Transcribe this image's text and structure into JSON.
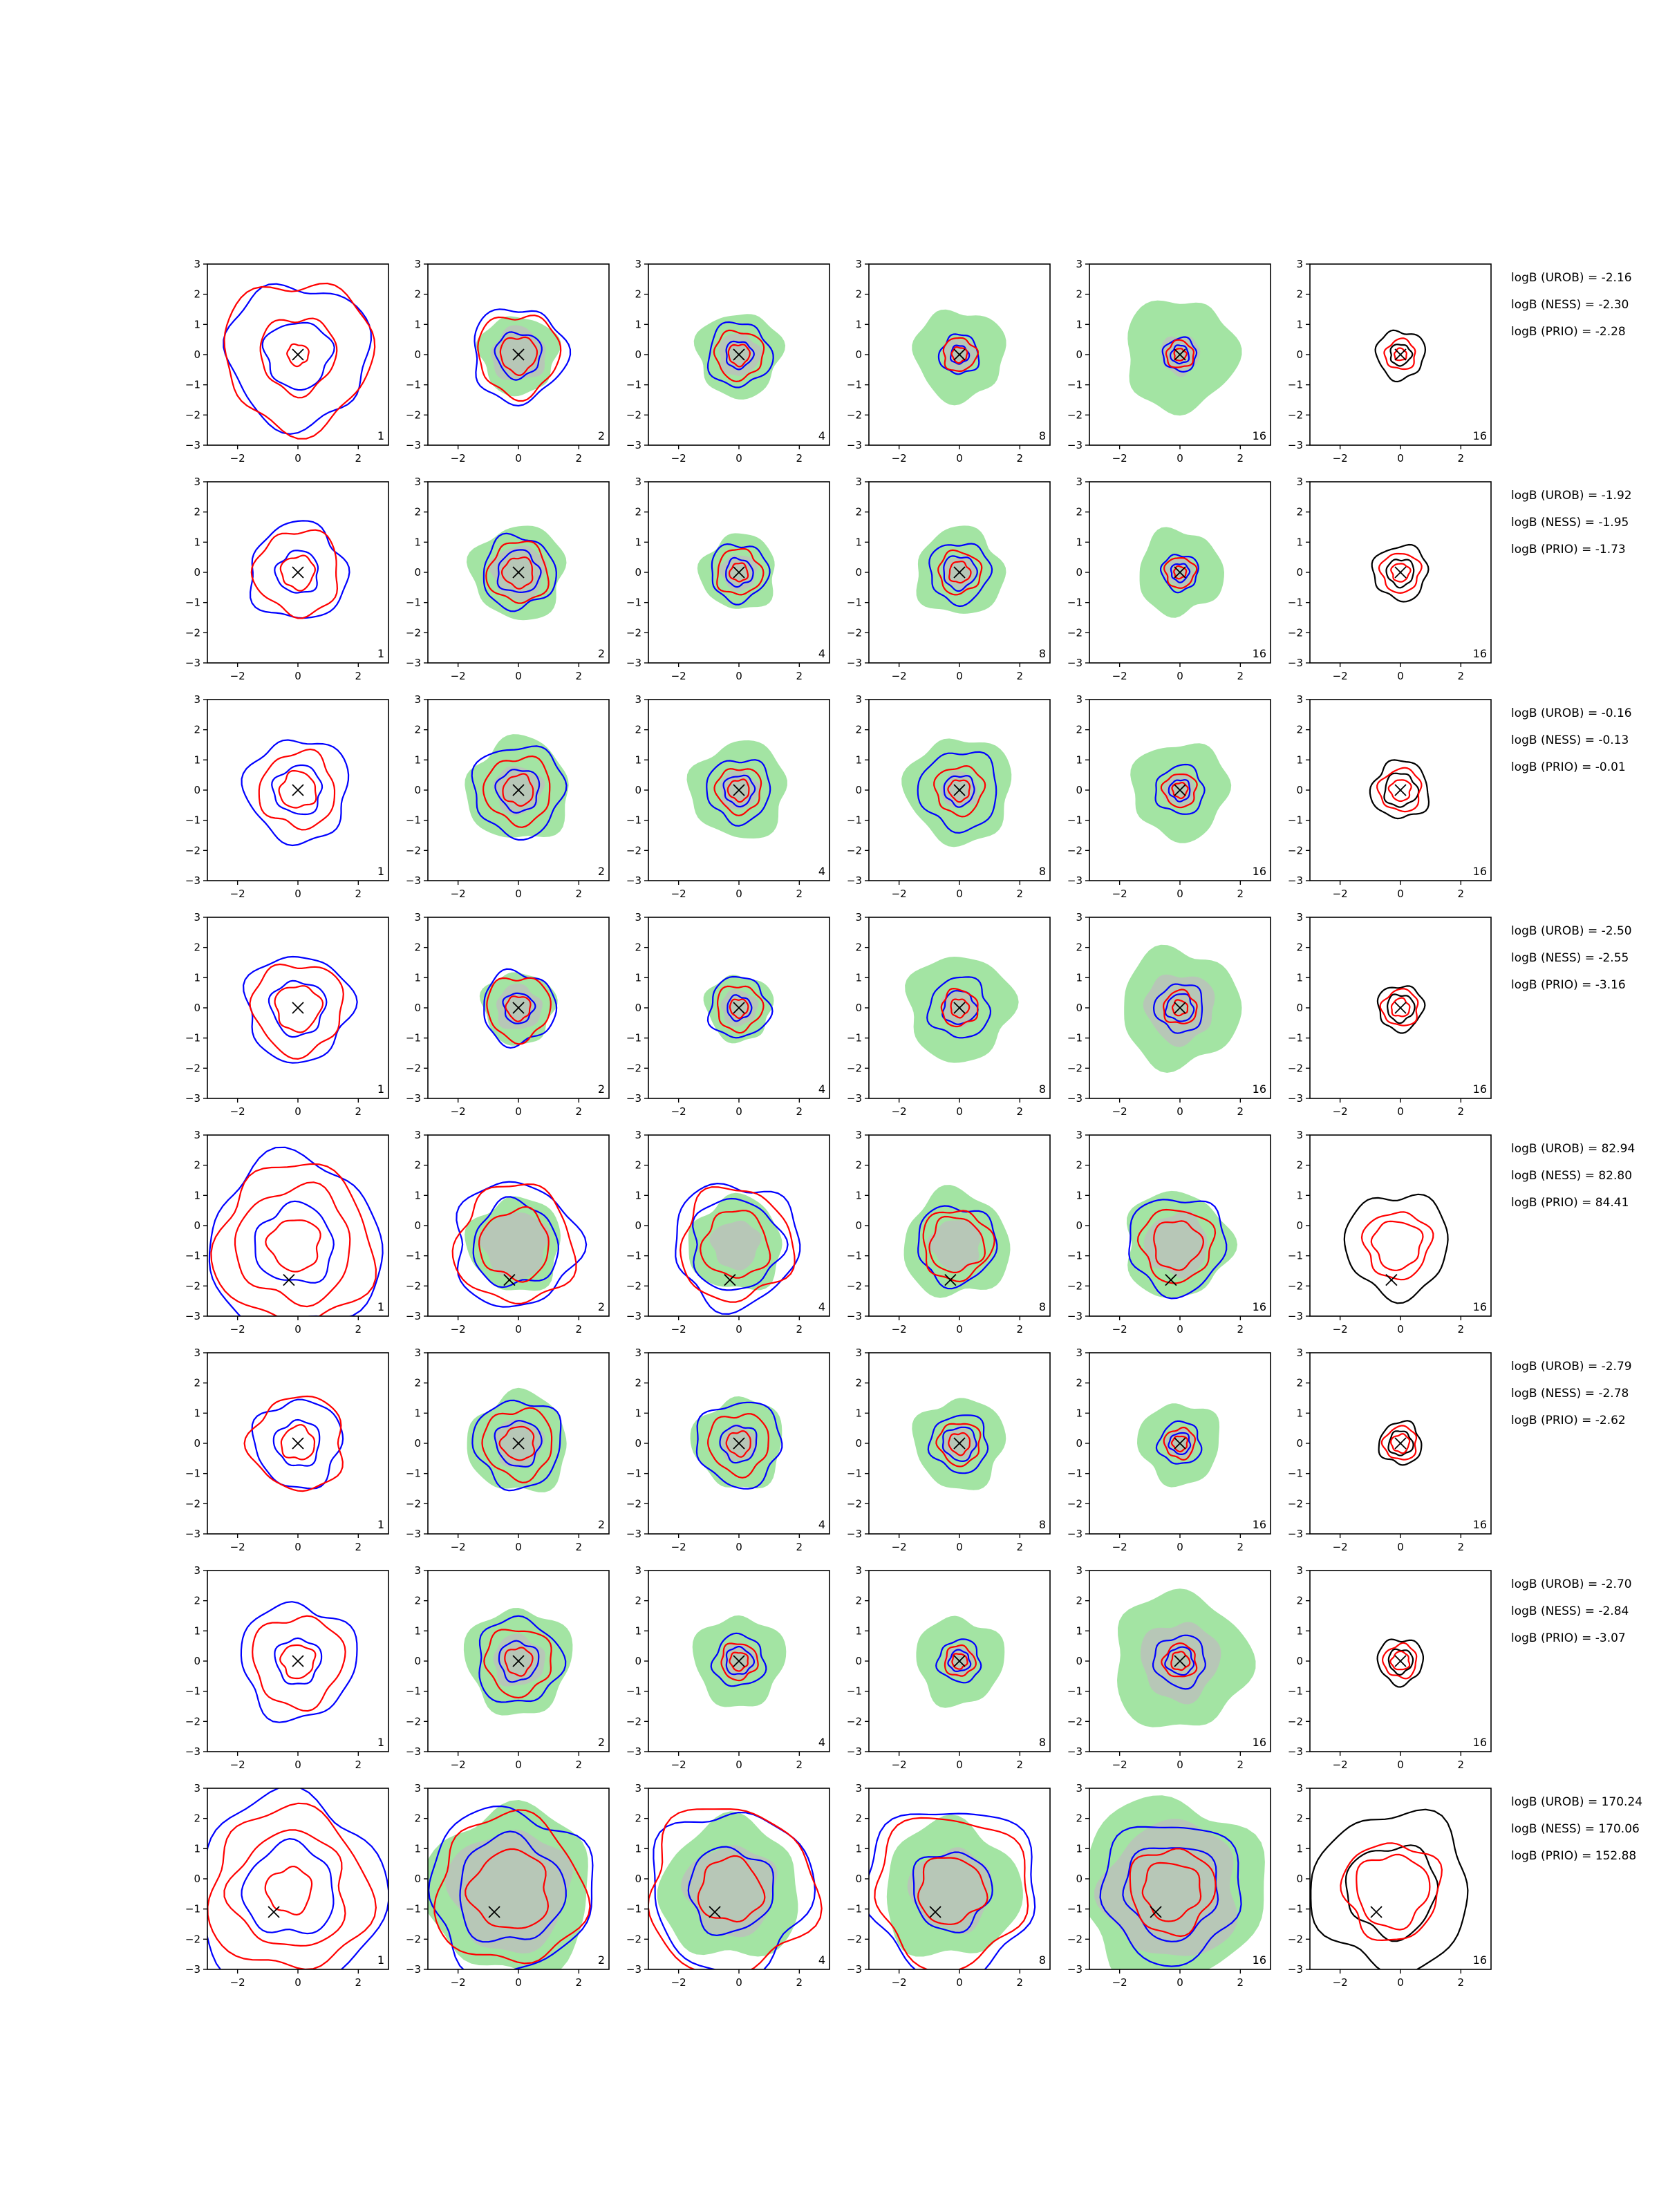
{
  "chart_data": {
    "type": "contour",
    "rows": 8,
    "cols": 6,
    "xlim": [
      -3,
      3
    ],
    "ylim": [
      -3,
      3
    ],
    "x_ticks": [
      -2,
      0,
      2
    ],
    "y_ticks": [
      3,
      2,
      1,
      0,
      -1,
      -2,
      -3
    ],
    "x_tick_labels": [
      "−2",
      "0",
      "2"
    ],
    "y_tick_labels": [
      "3",
      "2",
      "1",
      "0",
      "−1",
      "−2",
      "−3"
    ],
    "panel_labels": [
      "1",
      "2",
      "4",
      "8",
      "16",
      "16"
    ],
    "colors": {
      "blue": "#0000ff",
      "red": "#ff0000",
      "black": "#000000",
      "green_fill": "#a3e4a3",
      "gray_fill": "#bdbdbd",
      "marker": "#000000"
    },
    "rows_data": [
      {
        "marker": [
          0,
          0
        ],
        "logb": [
          "logB (UROB) = -2.16",
          "logB (NESS) = -2.30",
          "logB (PRIO) = -2.28"
        ],
        "panels": [
          {
            "fill": null,
            "gray": null,
            "blue": [
              1.1,
              2.35
            ],
            "red": [
              0.35,
              1.25,
              2.45
            ],
            "black": []
          },
          {
            "fill": 1.3,
            "gray": 0.9,
            "blue": [
              0.75,
              1.55
            ],
            "red": [
              0.6,
              1.35
            ],
            "black": []
          },
          {
            "fill": 1.4,
            "gray": 0.7,
            "blue": [
              0.45,
              1.05
            ],
            "red": [
              0.35,
              0.8
            ],
            "black": []
          },
          {
            "fill": 1.5,
            "gray": 0.55,
            "blue": [
              0.3,
              0.65
            ],
            "red": [
              0.25,
              0.55
            ],
            "black": []
          },
          {
            "fill": 1.85,
            "gray": 0.65,
            "blue": [
              0.3,
              0.55
            ],
            "red": [
              0.2,
              0.45
            ],
            "black": []
          },
          {
            "fill": null,
            "gray": null,
            "blue": [],
            "red": [
              0.2,
              0.5
            ],
            "black": [
              0.35,
              0.8
            ]
          }
        ]
      },
      {
        "marker": [
          0,
          0
        ],
        "logb": [
          "logB (UROB) = -1.92",
          "logB (NESS) = -1.95",
          "logB (PRIO) = -1.73"
        ],
        "panels": [
          {
            "fill": null,
            "gray": null,
            "blue": [
              0.7,
              1.6
            ],
            "red": [
              0.55,
              1.4
            ],
            "black": []
          },
          {
            "fill": 1.55,
            "gray": 0.9,
            "blue": [
              0.7,
              1.2
            ],
            "red": [
              0.5,
              1.0
            ],
            "black": []
          },
          {
            "fill": 1.25,
            "gray": 0.6,
            "blue": [
              0.45,
              0.95
            ],
            "red": [
              0.3,
              0.75
            ],
            "black": []
          },
          {
            "fill": 1.45,
            "gray": 0.55,
            "blue": [
              0.55,
              1.0
            ],
            "red": [
              0.35,
              0.7
            ],
            "black": []
          },
          {
            "fill": 1.4,
            "gray": 0.5,
            "blue": [
              0.3,
              0.6
            ],
            "red": [
              0.2,
              0.5
            ],
            "black": []
          },
          {
            "fill": null,
            "gray": null,
            "blue": [],
            "red": [
              0.3,
              0.65
            ],
            "black": [
              0.45,
              0.9
            ]
          }
        ]
      },
      {
        "marker": [
          0,
          0
        ],
        "logb": [
          "logB (UROB) = -0.16",
          "logB (NESS) = -0.13",
          "logB (PRIO) = -0.01"
        ],
        "panels": [
          {
            "fill": null,
            "gray": null,
            "blue": [
              0.8,
              1.7
            ],
            "red": [
              0.6,
              1.25
            ],
            "black": []
          },
          {
            "fill": 1.7,
            "gray": 0.8,
            "blue": [
              0.7,
              1.5
            ],
            "red": [
              0.5,
              1.1
            ],
            "black": []
          },
          {
            "fill": 1.6,
            "gray": 0.65,
            "blue": [
              0.5,
              1.05
            ],
            "red": [
              0.35,
              0.75
            ],
            "black": []
          },
          {
            "fill": 1.75,
            "gray": 0.6,
            "blue": [
              0.5,
              1.3
            ],
            "red": [
              0.35,
              0.8
            ],
            "black": []
          },
          {
            "fill": 1.6,
            "gray": 0.55,
            "blue": [
              0.35,
              0.8
            ],
            "red": [
              0.25,
              0.55
            ],
            "black": []
          },
          {
            "fill": null,
            "gray": null,
            "blue": [],
            "red": [
              0.35,
              0.7
            ],
            "black": [
              0.55,
              0.95
            ]
          }
        ]
      },
      {
        "marker": [
          0,
          0
        ],
        "logb": [
          "logB (UROB) = -2.50",
          "logB (NESS) = -2.55",
          "logB (PRIO) = -3.16"
        ],
        "panels": [
          {
            "fill": null,
            "gray": null,
            "blue": [
              0.9,
              1.75
            ],
            "red": [
              0.75,
              1.5
            ],
            "black": []
          },
          {
            "fill": 1.2,
            "gray": 0.75,
            "blue": [
              0.5,
              1.2
            ],
            "red": [
              0.4,
              1.05
            ],
            "black": []
          },
          {
            "fill": 1.1,
            "gray": 0.6,
            "blue": [
              0.4,
              1.0
            ],
            "red": [
              0.3,
              0.75
            ],
            "black": []
          },
          {
            "fill": 1.75,
            "gray": 0.6,
            "blue": [
              0.55,
              1.0
            ],
            "red": [
              0.3,
              0.6
            ],
            "black": []
          },
          {
            "fill": 1.95,
            "gray": 1.15,
            "blue": [
              0.45,
              0.8
            ],
            "red": [
              0.25,
              0.55
            ],
            "black": []
          },
          {
            "fill": null,
            "gray": null,
            "blue": [],
            "red": [
              0.3,
              0.6
            ],
            "black": [
              0.45,
              0.75
            ]
          }
        ]
      },
      {
        "marker": [
          -0.3,
          -1.8
        ],
        "logb": [
          "logB (UROB) = 82.94",
          "logB (NESS) = 82.80",
          "logB (PRIO) = 84.41"
        ],
        "panels": [
          {
            "fill": null,
            "gray": null,
            "blue": [
              1.3,
              2.85
            ],
            "red": [
              0.85,
              1.9,
              2.6
            ],
            "black": []
          },
          {
            "fill": 1.55,
            "gray": 1.1,
            "blue": [
              1.4,
              2.05
            ],
            "red": [
              1.15,
              1.95
            ],
            "black": []
          },
          {
            "fill": 1.55,
            "gray": 0.8,
            "blue": [
              1.5,
              2.05
            ],
            "red": [
              1.1,
              1.85
            ],
            "black": []
          },
          {
            "fill": 1.75,
            "gray": 0.85,
            "blue": [
              1.3
            ],
            "red": [
              0.9,
              1.15
            ],
            "black": []
          },
          {
            "fill": 1.75,
            "gray": 1.05,
            "blue": [
              1.6
            ],
            "red": [
              0.8,
              1.2
            ],
            "black": []
          },
          {
            "fill": null,
            "gray": null,
            "blue": [],
            "red": [
              0.8,
              1.1
            ],
            "black": [
              1.7
            ]
          }
        ]
      },
      {
        "marker": [
          0,
          0
        ],
        "logb": [
          "logB (UROB) = -2.79",
          "logB (NESS) = -2.78",
          "logB (PRIO) = -2.62"
        ],
        "panels": [
          {
            "fill": null,
            "gray": null,
            "blue": [
              0.75,
              1.45
            ],
            "red": [
              0.55,
              1.55
            ],
            "black": []
          },
          {
            "fill": 1.65,
            "gray": 0.8,
            "blue": [
              0.75,
              1.45
            ],
            "red": [
              0.55,
              1.15
            ],
            "black": []
          },
          {
            "fill": 1.5,
            "gray": 0.6,
            "blue": [
              0.6,
              1.4
            ],
            "red": [
              0.4,
              1.0
            ],
            "black": []
          },
          {
            "fill": 1.5,
            "gray": 0.55,
            "blue": [
              0.55,
              0.95
            ],
            "red": [
              0.35,
              0.7
            ],
            "black": []
          },
          {
            "fill": 1.35,
            "gray": 0.5,
            "blue": [
              0.35,
              0.7
            ],
            "red": [
              0.25,
              0.5
            ],
            "black": []
          },
          {
            "fill": null,
            "gray": null,
            "blue": [],
            "red": [
              0.3,
              0.55
            ],
            "black": [
              0.4,
              0.7
            ]
          }
        ]
      },
      {
        "marker": [
          0,
          0
        ],
        "logb": [
          "logB (UROB) = -2.70",
          "logB (NESS) = -2.84",
          "logB (PRIO) = -3.07"
        ],
        "panels": [
          {
            "fill": null,
            "gray": null,
            "blue": [
              0.75,
              1.9
            ],
            "red": [
              0.55,
              1.5
            ],
            "black": []
          },
          {
            "fill": 1.75,
            "gray": 0.85,
            "blue": [
              0.65,
              1.4
            ],
            "red": [
              0.45,
              1.1
            ],
            "black": []
          },
          {
            "fill": 1.5,
            "gray": 0.6,
            "blue": [
              0.45,
              0.85
            ],
            "red": [
              0.3,
              0.6
            ],
            "black": []
          },
          {
            "fill": 1.45,
            "gray": 0.5,
            "blue": [
              0.35,
              0.7
            ],
            "red": [
              0.25,
              0.5
            ],
            "black": []
          },
          {
            "fill": 2.25,
            "gray": 1.3,
            "blue": [
              0.45,
              0.85
            ],
            "red": [
              0.3,
              0.55
            ],
            "black": []
          },
          {
            "fill": null,
            "gray": null,
            "blue": [],
            "red": [
              0.3,
              0.55
            ],
            "black": [
              0.4,
              0.75
            ]
          }
        ]
      },
      {
        "marker": [
          -0.8,
          -1.1
        ],
        "logb": [
          "logB (UROB) = 170.24",
          "logB (NESS) = 170.06",
          "logB (PRIO) = 152.88"
        ],
        "panels": [
          {
            "fill": null,
            "gray": null,
            "blue": [
              1.5,
              3.1
            ],
            "red": [
              0.75,
              1.9,
              2.65
            ],
            "black": []
          },
          {
            "fill": 2.75,
            "gray": 2.0,
            "blue": [
              1.75,
              2.7
            ],
            "red": [
              1.3,
              2.45
            ],
            "black": []
          },
          {
            "fill": 2.3,
            "gray": 1.5,
            "blue": [
              1.4,
              2.65
            ],
            "red": [
              1.05,
              2.75
            ],
            "black": []
          },
          {
            "fill": 2.25,
            "gray": 1.35,
            "blue": [
              1.3,
              2.8
            ],
            "red": [
              1.1,
              2.5
            ],
            "black": []
          },
          {
            "fill": 3.05,
            "gray": 2.25,
            "blue": [
              1.55,
              2.3
            ],
            "red": [
              0.95,
              1.4
            ],
            "black": []
          },
          {
            "fill": null,
            "gray": null,
            "blue": [],
            "red": [
              1.2,
              1.6
            ],
            "black": [
              1.5,
              2.6
            ]
          }
        ]
      }
    ]
  }
}
